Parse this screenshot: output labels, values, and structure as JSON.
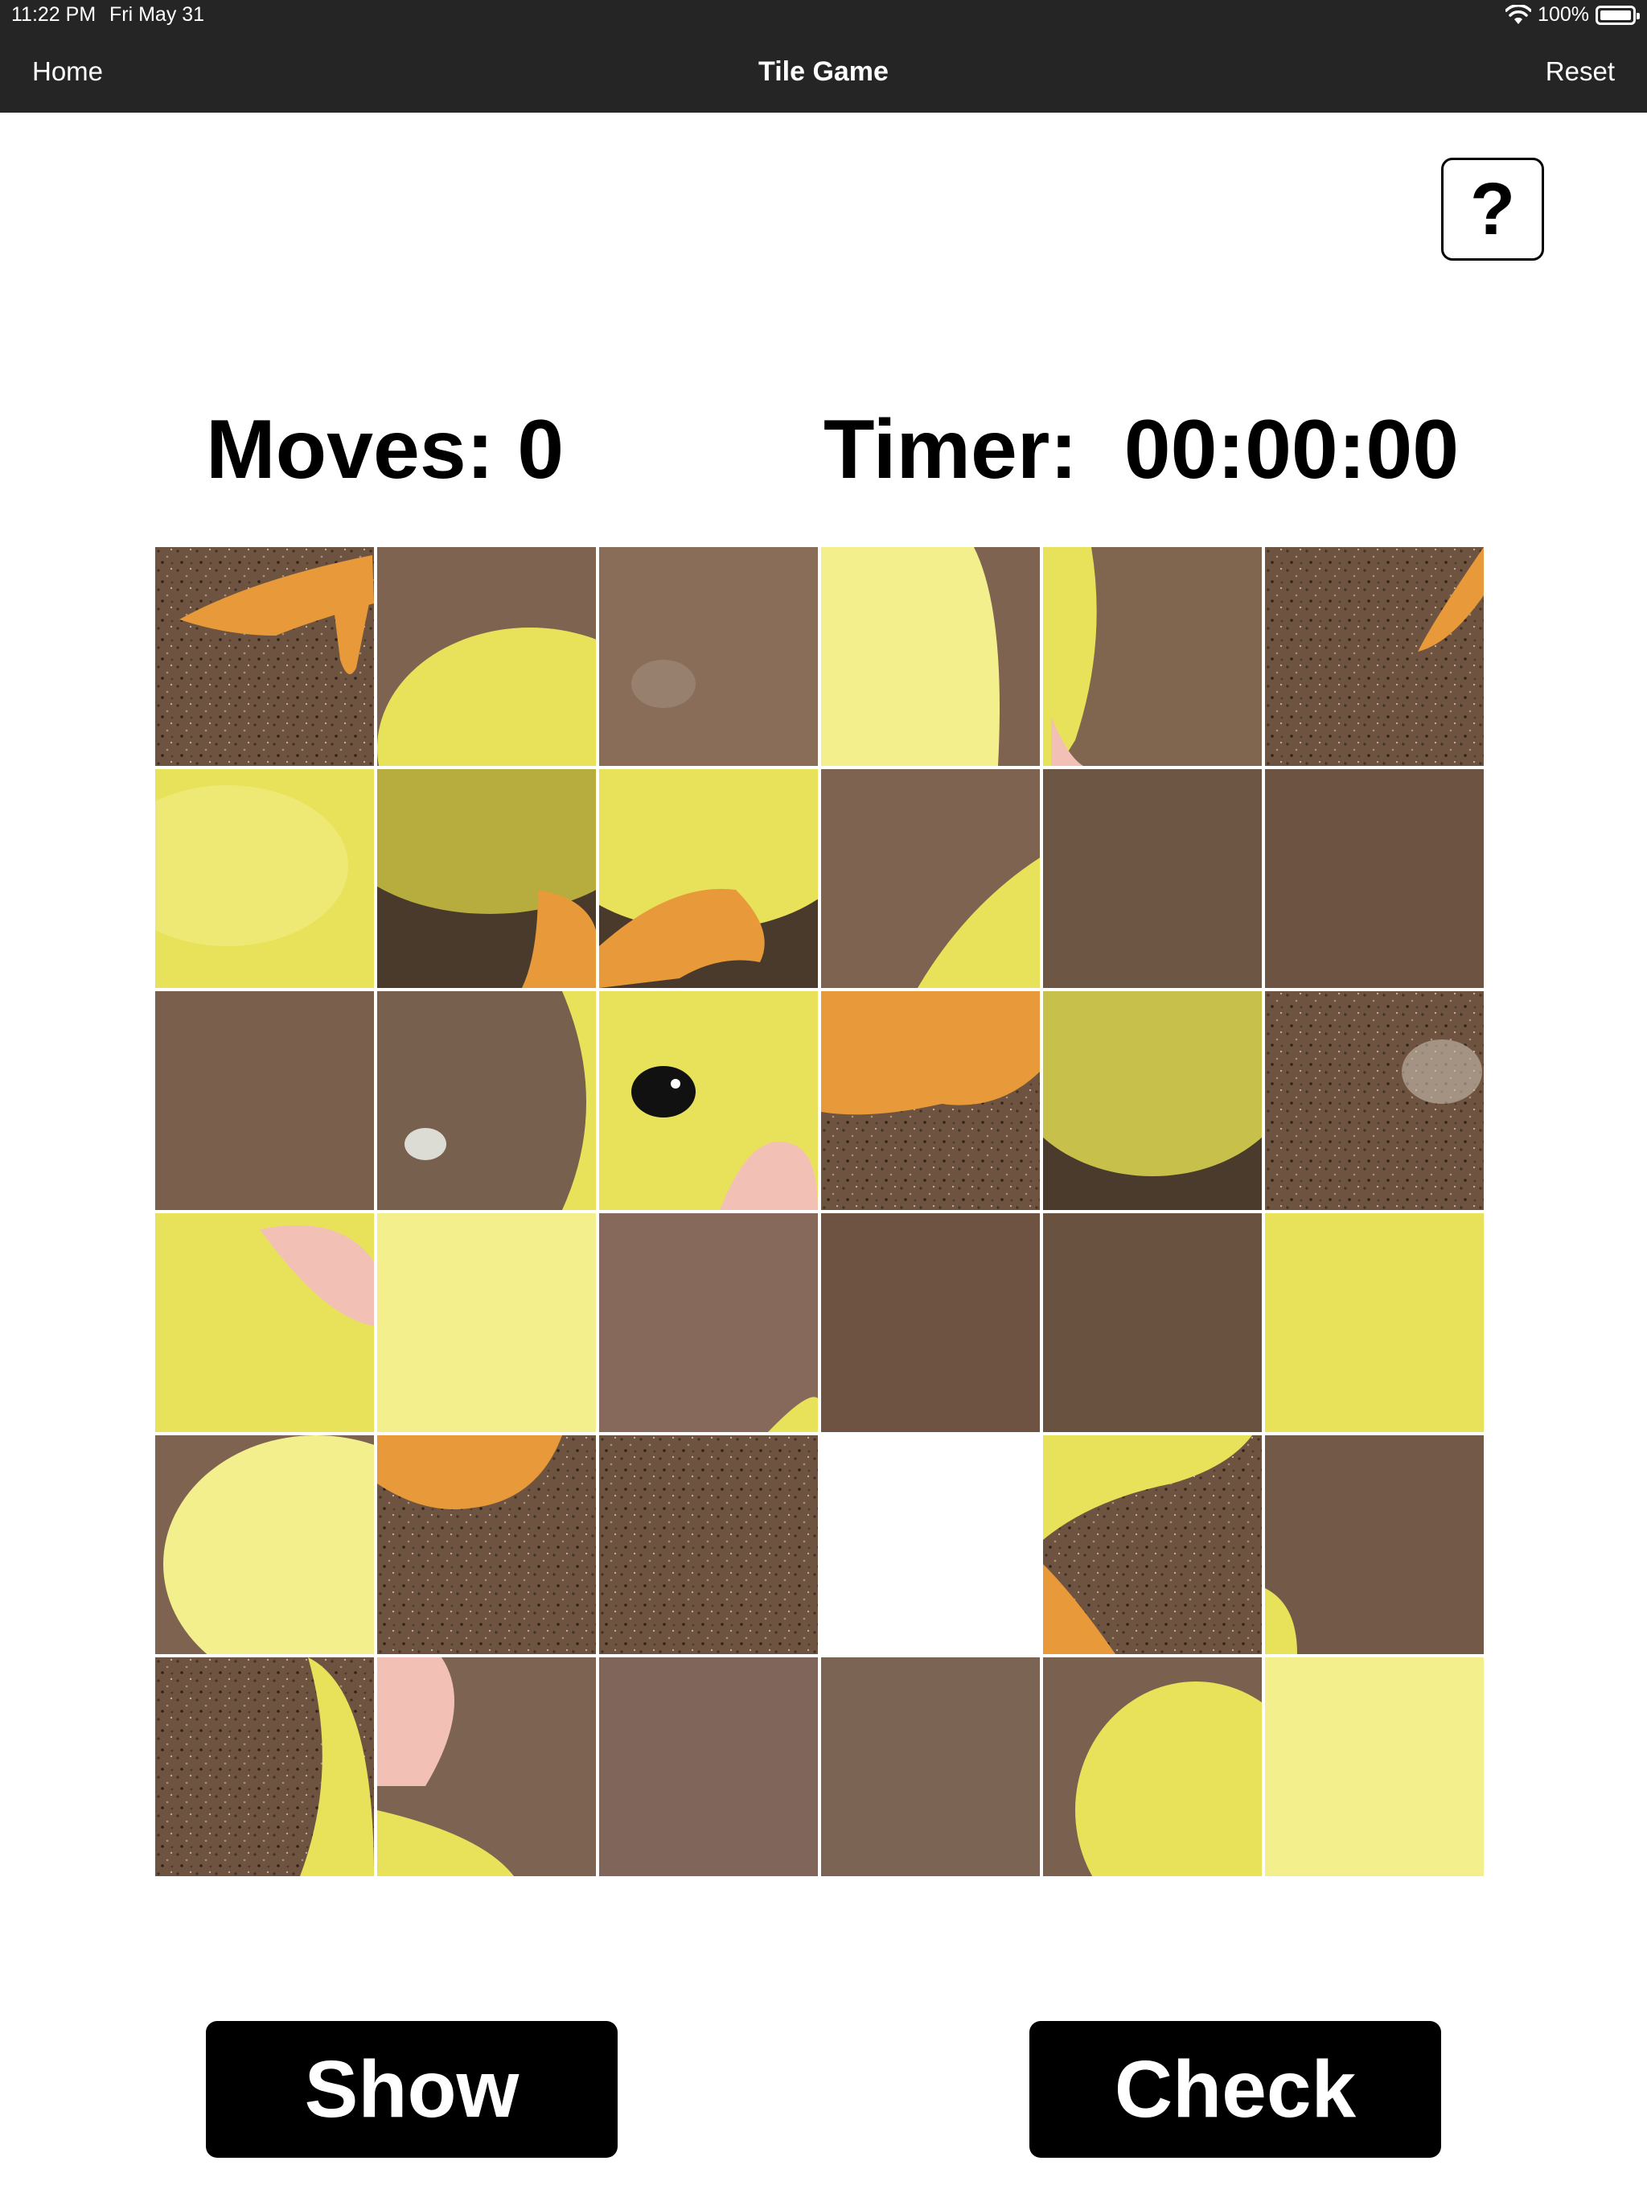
{
  "status_bar": {
    "time": "11:22 PM",
    "date": "Fri May 31",
    "battery": "100%",
    "battery_level": 1.0
  },
  "nav": {
    "home": "Home",
    "title": "Tile Game",
    "reset": "Reset"
  },
  "help_label": "?",
  "stats": {
    "moves": "Moves: 0",
    "timer": "Timer:  00:00:00"
  },
  "buttons": {
    "show": "Show",
    "check": "Check"
  },
  "board": {
    "rows": 6,
    "cols": 6,
    "empty_cell": {
      "row": 4,
      "col": 3
    },
    "puzzle_image": "duckling-photo",
    "colors": {
      "dirt": "#7d6350",
      "dirt_dark": "#4a3a2c",
      "feather": "#e8e25a",
      "feather_light": "#f3ef8d",
      "foot": "#e89a3a",
      "beak": "#f3c0b6",
      "eye": "#111111"
    }
  }
}
